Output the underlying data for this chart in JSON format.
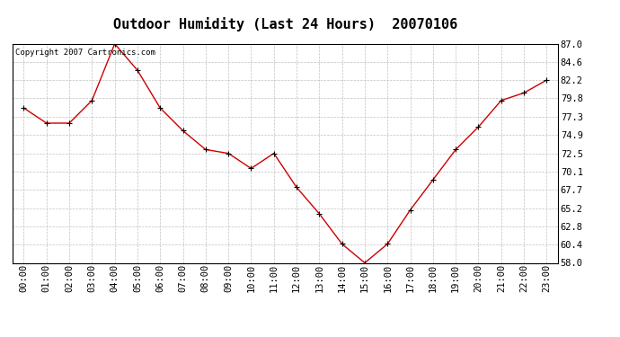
{
  "title": "Outdoor Humidity (Last 24 Hours)  20070106",
  "copyright_text": "Copyright 2007 Cartronics.com",
  "hours": [
    0,
    1,
    2,
    3,
    4,
    5,
    6,
    7,
    8,
    9,
    10,
    11,
    12,
    13,
    14,
    15,
    16,
    17,
    18,
    19,
    20,
    21,
    22,
    23
  ],
  "values": [
    78.5,
    76.5,
    76.5,
    79.5,
    87.0,
    83.5,
    78.5,
    75.5,
    73.0,
    72.5,
    70.5,
    72.5,
    68.0,
    64.5,
    60.5,
    58.0,
    60.5,
    65.0,
    69.0,
    73.0,
    76.0,
    79.5,
    80.5,
    82.2
  ],
  "xlabels": [
    "00:00",
    "01:00",
    "02:00",
    "03:00",
    "04:00",
    "05:00",
    "06:00",
    "07:00",
    "08:00",
    "09:00",
    "10:00",
    "11:00",
    "12:00",
    "13:00",
    "14:00",
    "15:00",
    "16:00",
    "17:00",
    "18:00",
    "19:00",
    "20:00",
    "21:00",
    "22:00",
    "23:00"
  ],
  "ytick_values": [
    58.0,
    60.4,
    62.8,
    65.2,
    67.7,
    70.1,
    72.5,
    74.9,
    77.3,
    79.8,
    82.2,
    84.6,
    87.0
  ],
  "ytick_labels": [
    "58.0",
    "60.4",
    "62.8",
    "65.2",
    "67.7",
    "70.1",
    "72.5",
    "74.9",
    "77.3",
    "79.8",
    "82.2",
    "84.6",
    "87.0"
  ],
  "ymin": 58.0,
  "ymax": 87.0,
  "line_color": "#cc0000",
  "marker_color": "#000000",
  "bg_color": "#ffffff",
  "plot_bg_color": "#ffffff",
  "grid_color": "#c0c0c0",
  "title_fontsize": 11,
  "tick_fontsize": 7.5,
  "copyright_fontsize": 6.5
}
